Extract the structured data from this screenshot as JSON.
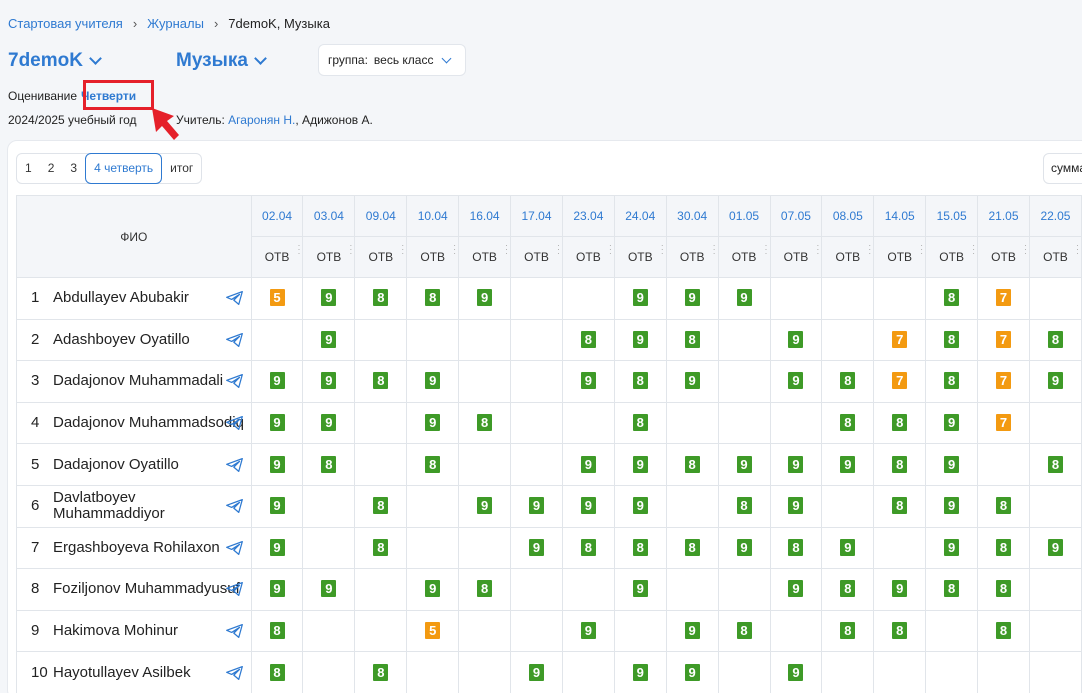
{
  "breadcrumb": [
    "Стартовая учителя",
    "Журналы",
    "7demoK, Музыка"
  ],
  "class_label": "7demoK",
  "subject_label": "Музыка",
  "group": {
    "label": "группа:",
    "value": "весь класс"
  },
  "grading": {
    "label": "Оценивание",
    "value": "Четверти"
  },
  "year": "2024/2025 учебный год",
  "teacher": {
    "label": "Учитель:",
    "name1": "Агаронян Н.",
    "name2": ", Адижонов А."
  },
  "tabs": [
    "1",
    "2",
    "3",
    "4 четверть",
    "итог"
  ],
  "sum_label": "сумма",
  "table": {
    "fio_header": "ФИО",
    "otv": "ОТВ",
    "dates": [
      "02.04",
      "03.04",
      "09.04",
      "10.04",
      "16.04",
      "17.04",
      "23.04",
      "24.04",
      "30.04",
      "01.05",
      "07.05",
      "08.05",
      "14.05",
      "15.05",
      "21.05",
      "22.05"
    ],
    "rows": [
      {
        "num": "1",
        "name": "Abdullayev Abubakir",
        "grades": [
          "5",
          "9",
          "8",
          "8",
          "9",
          "",
          "",
          "9",
          "9",
          "9",
          "",
          "",
          "",
          "8",
          "7",
          ""
        ]
      },
      {
        "num": "2",
        "name": "Adashboyev Oyatillo",
        "grades": [
          "",
          "9",
          "",
          "",
          "",
          "",
          "8",
          "9",
          "8",
          "",
          "9",
          "",
          "7",
          "8",
          "7",
          "8"
        ]
      },
      {
        "num": "3",
        "name": "Dadajonov Muhammadali",
        "grades": [
          "9",
          "9",
          "8",
          "9",
          "",
          "",
          "9",
          "8",
          "9",
          "",
          "9",
          "8",
          "7",
          "8",
          "7",
          "9"
        ]
      },
      {
        "num": "4",
        "name": "Dadajonov Muhammadsodiq",
        "grades": [
          "9",
          "9",
          "",
          "9",
          "8",
          "",
          "",
          "8",
          "",
          "",
          "",
          "8",
          "8",
          "9",
          "7",
          ""
        ]
      },
      {
        "num": "5",
        "name": "Dadajonov Oyatillo",
        "grades": [
          "9",
          "8",
          "",
          "8",
          "",
          "",
          "9",
          "9",
          "8",
          "9",
          "9",
          "9",
          "8",
          "9",
          "",
          "8"
        ]
      },
      {
        "num": "6",
        "name": "Davlatboyev Muhammaddiyor",
        "grades": [
          "9",
          "",
          "8",
          "",
          "9",
          "9",
          "9",
          "9",
          "",
          "8",
          "9",
          "",
          "8",
          "9",
          "8",
          ""
        ]
      },
      {
        "num": "7",
        "name": "Ergashboyeva Rohilaxon",
        "grades": [
          "9",
          "",
          "8",
          "",
          "",
          "9",
          "8",
          "8",
          "8",
          "9",
          "8",
          "9",
          "",
          "9",
          "8",
          "9"
        ]
      },
      {
        "num": "8",
        "name": "Foziljonov Muhammadyusuf",
        "grades": [
          "9",
          "9",
          "",
          "9",
          "8",
          "",
          "",
          "9",
          "",
          "",
          "9",
          "8",
          "9",
          "8",
          "8",
          ""
        ]
      },
      {
        "num": "9",
        "name": "Hakimova Mohinur",
        "grades": [
          "8",
          "",
          "",
          "5",
          "",
          "",
          "9",
          "",
          "9",
          "8",
          "",
          "8",
          "8",
          "",
          "8",
          ""
        ]
      },
      {
        "num": "10",
        "name": "Hayotullayev Asilbek",
        "grades": [
          "8",
          "",
          "8",
          "",
          "",
          "9",
          "",
          "9",
          "9",
          "",
          "9",
          "",
          "",
          "",
          "",
          ""
        ]
      }
    ]
  },
  "colors": {
    "green": "#3e9a27",
    "orange": "#f39a11",
    "accent": "#2f7ad1",
    "highlight": "#e5202a"
  }
}
